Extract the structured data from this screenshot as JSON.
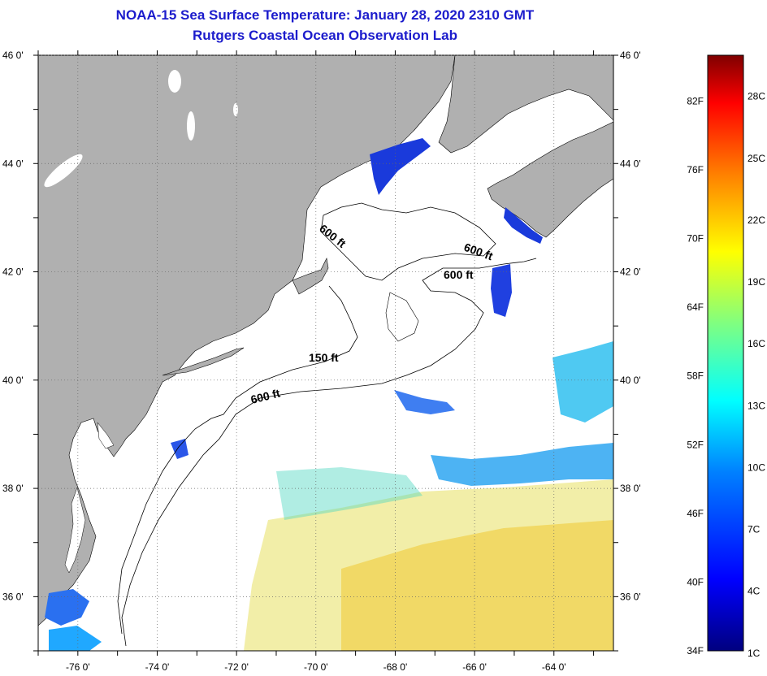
{
  "header": {
    "title": "NOAA-15 Sea Surface Temperature:  January 28, 2020 2310 GMT",
    "subtitle": "Rutgers Coastal Ocean Observation Lab"
  },
  "map": {
    "lat_ticks": [
      "46 0'",
      "44 0'",
      "42 0'",
      "40 0'",
      "38 0'",
      "36 0'"
    ],
    "lon_ticks": [
      "-76 0'",
      "-74 0'",
      "-72 0'",
      "-70 0'",
      "-68 0'",
      "-66 0'",
      "-64 0'"
    ],
    "lat_range": [
      35,
      46
    ],
    "lon_range": [
      -77,
      -62.5
    ],
    "contour_labels": [
      "600 ft",
      "600 ft",
      "600 ft",
      "150 ft",
      "600 ft"
    ],
    "land_color": "#b0b0b0",
    "grid": true
  },
  "colorbar": {
    "fahrenheit_labels": [
      "82F",
      "76F",
      "70F",
      "64F",
      "58F",
      "52F",
      "46F",
      "40F",
      "34F"
    ],
    "celsius_labels": [
      "28C",
      "25C",
      "22C",
      "19C",
      "16C",
      "13C",
      "10C",
      "7C",
      "4C",
      "1C"
    ],
    "fahrenheit_values": [
      82,
      76,
      70,
      64,
      58,
      52,
      46,
      40,
      34
    ],
    "celsius_values": [
      28,
      25,
      22,
      19,
      16,
      13,
      10,
      7,
      4,
      1
    ],
    "range_f": [
      34,
      86
    ],
    "colors": [
      "#00007f",
      "#0000ff",
      "#0080ff",
      "#00ffff",
      "#80ff80",
      "#ffff00",
      "#ff8000",
      "#ff0000",
      "#7f0000"
    ]
  }
}
